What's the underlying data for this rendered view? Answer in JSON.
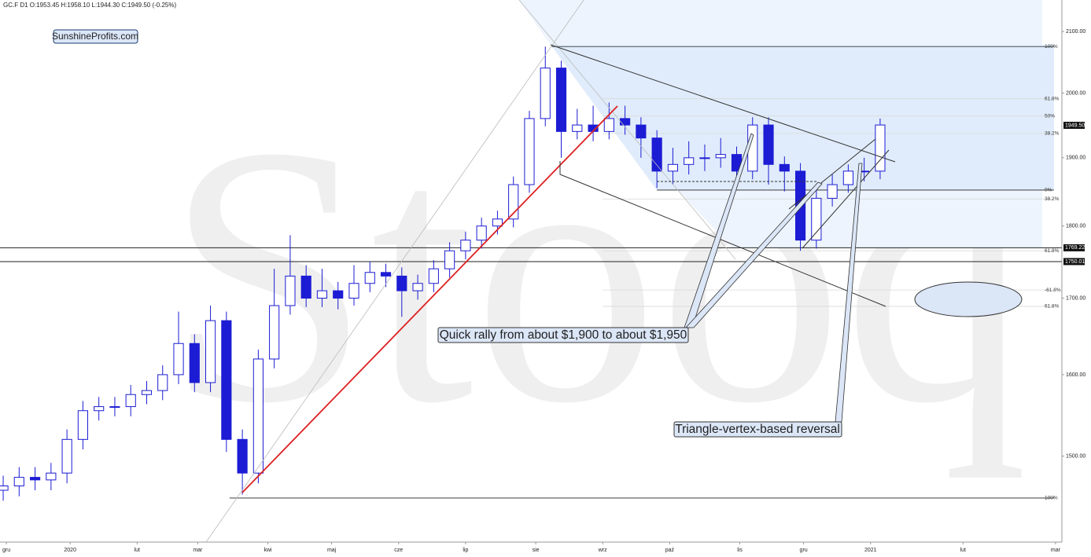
{
  "chart_data": {
    "type": "candlestick",
    "title": "GC.F  D1  O:1953.45  H:1958.10  L:1944.30  C:1949.50  (-0.25%)",
    "brand": "SunshineProfits.com",
    "watermark": "Stooq",
    "log_scale": true,
    "color": "#1c1cd4",
    "ylim": [
      1403,
      2153
    ],
    "yticks": [
      {
        "value": 2100,
        "label": "2100.00"
      },
      {
        "value": 2000,
        "label": "2000.00"
      },
      {
        "value": 1900,
        "label": "1900.00"
      },
      {
        "value": 1800,
        "label": "1800.00"
      },
      {
        "value": 1700,
        "label": "1700.00"
      },
      {
        "value": 1600,
        "label": "1600.00"
      },
      {
        "value": 1500,
        "label": "1500.00"
      }
    ],
    "xlim": [
      -1,
      332
    ],
    "xticks": [
      {
        "value": 1,
        "label": "gru"
      },
      {
        "value": 21,
        "label": "2020"
      },
      {
        "value": 42,
        "label": "lut"
      },
      {
        "value": 61,
        "label": "mar"
      },
      {
        "value": 83,
        "label": "kwi"
      },
      {
        "value": 103,
        "label": "maj"
      },
      {
        "value": 124,
        "label": "cze"
      },
      {
        "value": 145,
        "label": "lip"
      },
      {
        "value": 167,
        "label": "sie"
      },
      {
        "value": 188,
        "label": "wrz"
      },
      {
        "value": 209,
        "label": "paź"
      },
      {
        "value": 231,
        "label": "lis"
      },
      {
        "value": 251,
        "label": "gru"
      },
      {
        "value": 272,
        "label": "2021"
      },
      {
        "value": 301,
        "label": "lut"
      },
      {
        "value": 330,
        "label": "mar"
      }
    ],
    "x": [
      0,
      5,
      10,
      15,
      20,
      25,
      30,
      35,
      40,
      45,
      50,
      55,
      60,
      65,
      70,
      75,
      80,
      85,
      90,
      95,
      100,
      105,
      110,
      115,
      120,
      125,
      130,
      135,
      140,
      145,
      150,
      155,
      160,
      165,
      170,
      175,
      180,
      185,
      190,
      195,
      200,
      205,
      210,
      215,
      220,
      225,
      230,
      235,
      240,
      245,
      250,
      255,
      260,
      265,
      270,
      275
    ],
    "open": [
      1460,
      1465,
      1475,
      1472,
      1480,
      1520,
      1555,
      1560,
      1560,
      1575,
      1580,
      1600,
      1640,
      1590,
      1670,
      1520,
      1480,
      1620,
      1690,
      1730,
      1700,
      1710,
      1700,
      1720,
      1735,
      1730,
      1710,
      1720,
      1740,
      1765,
      1780,
      1800,
      1810,
      1860,
      1960,
      2040,
      1940,
      1950,
      1940,
      1960,
      1950,
      1930,
      1880,
      1890,
      1900,
      1900,
      1905,
      1880,
      1950,
      1890,
      1880,
      1780,
      1840,
      1860,
      1880,
      1880
    ],
    "high": [
      1477,
      1487,
      1487,
      1492,
      1532,
      1567,
      1572,
      1572,
      1587,
      1592,
      1612,
      1682,
      1652,
      1690,
      1682,
      1532,
      1632,
      1740,
      1787,
      1745,
      1740,
      1722,
      1745,
      1750,
      1747,
      1742,
      1732,
      1752,
      1777,
      1792,
      1812,
      1822,
      1872,
      1972,
      2075,
      2052,
      1975,
      1980,
      1985,
      1980,
      1962,
      1942,
      1915,
      1925,
      1920,
      1930,
      1917,
      1962,
      1962,
      1902,
      1892,
      1852,
      1875,
      1890,
      1900,
      1960
    ],
    "low": [
      1448,
      1453,
      1460,
      1460,
      1468,
      1508,
      1543,
      1548,
      1548,
      1563,
      1568,
      1588,
      1578,
      1578,
      1505,
      1455,
      1468,
      1608,
      1678,
      1688,
      1688,
      1685,
      1690,
      1708,
      1715,
      1675,
      1698,
      1708,
      1728,
      1753,
      1768,
      1788,
      1798,
      1848,
      1948,
      1900,
      1928,
      1925,
      1928,
      1935,
      1900,
      1855,
      1860,
      1875,
      1880,
      1885,
      1865,
      1868,
      1860,
      1850,
      1765,
      1768,
      1828,
      1848,
      1865,
      1868
    ],
    "close": [
      1465,
      1475,
      1472,
      1480,
      1520,
      1555,
      1560,
      1560,
      1575,
      1580,
      1600,
      1640,
      1590,
      1670,
      1520,
      1480,
      1620,
      1690,
      1730,
      1700,
      1710,
      1700,
      1720,
      1735,
      1730,
      1710,
      1720,
      1740,
      1765,
      1780,
      1800,
      1810,
      1860,
      1960,
      2040,
      1940,
      1950,
      1940,
      1960,
      1950,
      1930,
      1880,
      1890,
      1900,
      1900,
      1905,
      1880,
      1950,
      1890,
      1880,
      1780,
      1840,
      1860,
      1880,
      1880,
      1950
    ],
    "levels": [
      {
        "value": 2075,
        "label": "100%",
        "start": 172,
        "color": "#222"
      },
      {
        "value": 1991,
        "label": "61.8%",
        "start": 188,
        "color": "#d8d8d8"
      },
      {
        "value": 1964,
        "label": "50%",
        "start": 188,
        "color": "#d8d8d8"
      },
      {
        "value": 1937,
        "label": "38.2%",
        "start": 188,
        "color": "#d8d8d8"
      },
      {
        "value": 1852,
        "label": "0%",
        "start": 205,
        "color": "#222"
      },
      {
        "value": 1839,
        "label": "38.2%",
        "start": 188,
        "color": "#d8d8d8"
      },
      {
        "value": 1765,
        "label": "61.8%",
        "start": 188,
        "color": "#d8d8d8"
      },
      {
        "value": 1711,
        "label": "-61.8%",
        "start": 188,
        "color": "#d8d8d8"
      },
      {
        "value": 1689,
        "label": "61.8%",
        "start": 188,
        "color": "#d8d8d8"
      },
      {
        "value": 1451,
        "label": "100%",
        "start": 71,
        "color": "#222"
      }
    ],
    "price_lines": [
      {
        "value": 1769.22,
        "label": "1769.22"
      },
      {
        "value": 1750.01,
        "label": "1750.01"
      }
    ],
    "last_price": {
      "value": 1949.5,
      "label": "1949.50"
    },
    "annotations": [
      {
        "text": "Quick rally from about $1,900 to about $1,950"
      },
      {
        "text": "Triangle-vertex-based reversal"
      }
    ]
  }
}
